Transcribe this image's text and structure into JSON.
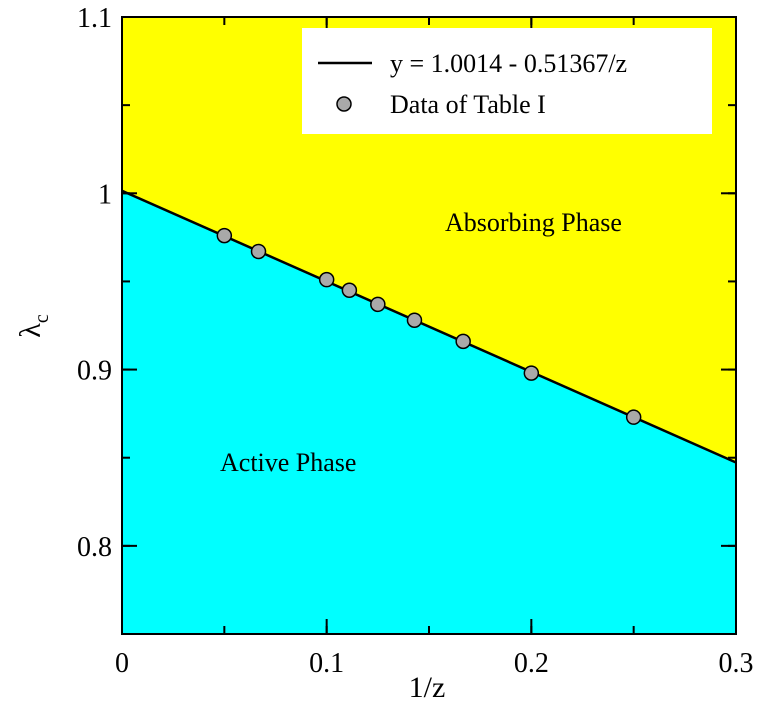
{
  "chart_data": {
    "type": "scatter",
    "xlabel": "1/z",
    "ylabel_main": "λ",
    "ylabel_sub": "c",
    "xlim": [
      0,
      0.3
    ],
    "ylim": [
      0.75,
      1.1
    ],
    "x_ticks": [
      {
        "value": 0,
        "label": "0"
      },
      {
        "value": 0.1,
        "label": "0.1"
      },
      {
        "value": 0.2,
        "label": "0.2"
      },
      {
        "value": 0.3,
        "label": "0.3"
      }
    ],
    "y_ticks": [
      {
        "value": 0.8,
        "label": "0.8"
      },
      {
        "value": 0.9,
        "label": "0.9"
      },
      {
        "value": 1.0,
        "label": "1"
      },
      {
        "value": 1.1,
        "label": "1.1"
      }
    ],
    "x_minor_step": 0.05,
    "y_minor_step": 0.05,
    "fit": {
      "label": "y = 1.0014 - 0.51367/z",
      "intercept": 1.0014,
      "slope": -0.51367
    },
    "points": {
      "label": "Data of Table I",
      "x": [
        0.05,
        0.0667,
        0.1,
        0.1111,
        0.125,
        0.1429,
        0.1667,
        0.2,
        0.25
      ],
      "y": [
        0.976,
        0.967,
        0.951,
        0.945,
        0.937,
        0.928,
        0.916,
        0.898,
        0.873
      ]
    },
    "regions": {
      "upper_label": "Absorbing Phase",
      "lower_label": "Active Phase",
      "upper_color": "#ffff00",
      "lower_color": "#00ffff"
    },
    "legend_position": "top-right",
    "point_color": "#a9a9a9"
  }
}
